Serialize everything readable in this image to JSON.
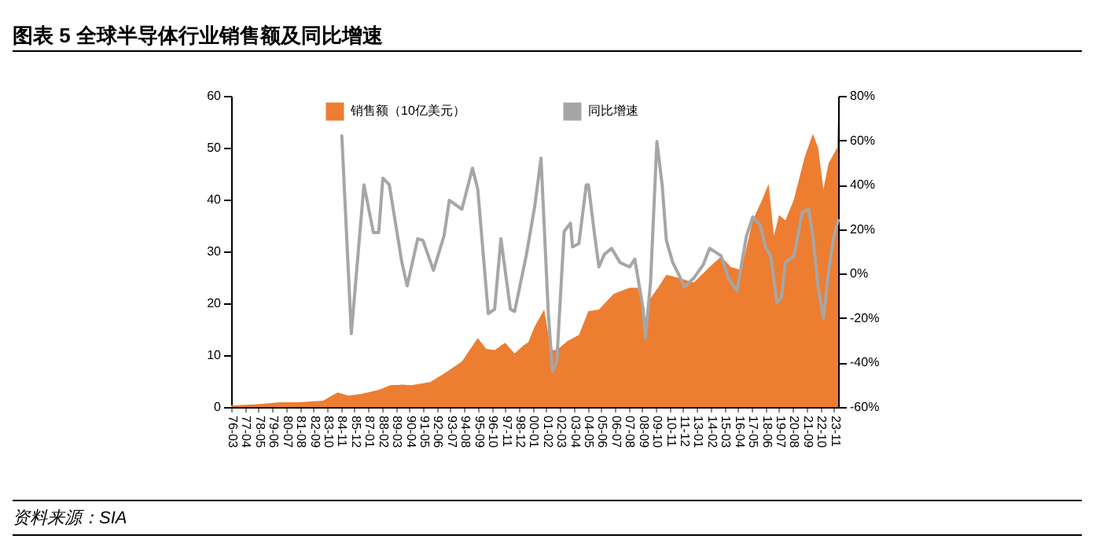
{
  "chart_data": {
    "type": "area",
    "title": "图表 5 全球半导体行业销售额及同比增速",
    "annotations": [
      "资料来源：SIA"
    ],
    "legend": "top",
    "xlim": [
      "1976-03",
      "2024-03"
    ],
    "xticks": [
      {
        "value": "1976-03",
        "label": "76-03"
      },
      {
        "value": "1977-04",
        "label": "77-04"
      },
      {
        "value": "1978-05",
        "label": "78-05"
      },
      {
        "value": "1979-06",
        "label": "79-06"
      },
      {
        "value": "1980-07",
        "label": "80-07"
      },
      {
        "value": "1981-08",
        "label": "81-08"
      },
      {
        "value": "1982-09",
        "label": "82-09"
      },
      {
        "value": "1983-10",
        "label": "83-10"
      },
      {
        "value": "1984-11",
        "label": "84-11"
      },
      {
        "value": "1985-12",
        "label": "85-12"
      },
      {
        "value": "1987-01",
        "label": "87-01"
      },
      {
        "value": "1988-02",
        "label": "88-02"
      },
      {
        "value": "1989-03",
        "label": "89-03"
      },
      {
        "value": "1990-04",
        "label": "90-04"
      },
      {
        "value": "1991-05",
        "label": "91-05"
      },
      {
        "value": "1992-06",
        "label": "92-06"
      },
      {
        "value": "1993-07",
        "label": "93-07"
      },
      {
        "value": "1994-08",
        "label": "94-08"
      },
      {
        "value": "1995-09",
        "label": "95-09"
      },
      {
        "value": "1996-10",
        "label": "96-10"
      },
      {
        "value": "1997-11",
        "label": "97-11"
      },
      {
        "value": "1998-12",
        "label": "98-12"
      },
      {
        "value": "2000-01",
        "label": "00-01"
      },
      {
        "value": "2001-02",
        "label": "01-02"
      },
      {
        "value": "2002-03",
        "label": "02-03"
      },
      {
        "value": "2003-04",
        "label": "03-04"
      },
      {
        "value": "2004-05",
        "label": "04-05"
      },
      {
        "value": "2005-06",
        "label": "05-06"
      },
      {
        "value": "2006-07",
        "label": "06-07"
      },
      {
        "value": "2007-08",
        "label": "07-08"
      },
      {
        "value": "2008-09",
        "label": "08-09"
      },
      {
        "value": "2009-10",
        "label": "09-10"
      },
      {
        "value": "2010-11",
        "label": "10-11"
      },
      {
        "value": "2011-12",
        "label": "11-12"
      },
      {
        "value": "2013-01",
        "label": "13-01"
      },
      {
        "value": "2014-02",
        "label": "14-02"
      },
      {
        "value": "2015-03",
        "label": "15-03"
      },
      {
        "value": "2016-04",
        "label": "16-04"
      },
      {
        "value": "2017-05",
        "label": "17-05"
      },
      {
        "value": "2018-06",
        "label": "18-06"
      },
      {
        "value": "2019-07",
        "label": "19-07"
      },
      {
        "value": "2020-08",
        "label": "20-08"
      },
      {
        "value": "2021-09",
        "label": "21-09"
      },
      {
        "value": "2022-10",
        "label": "22-10"
      },
      {
        "value": "2023-11",
        "label": "23-11"
      }
    ],
    "ylim": [
      0,
      60
    ],
    "yticks": [
      0,
      10,
      20,
      30,
      40,
      50,
      60
    ],
    "y2lim": [
      -60,
      80
    ],
    "y2ticks": [
      {
        "value": -60,
        "label": "-60%"
      },
      {
        "value": -40,
        "label": "-40%"
      },
      {
        "value": -20,
        "label": "-20%"
      },
      {
        "value": 0,
        "label": "0%"
      },
      {
        "value": 20,
        "label": "20%"
      },
      {
        "value": 40,
        "label": "40%"
      },
      {
        "value": 60,
        "label": "60%"
      },
      {
        "value": 80,
        "label": "80%"
      }
    ],
    "series": [
      {
        "name": "销售额（10亿美元）",
        "type": "area",
        "color": "#ed7d31",
        "x": [
          "1976-03",
          "1978-01",
          "1980-01",
          "1981-06",
          "1983-06",
          "1984-01",
          "1984-08",
          "1985-06",
          "1986-06",
          "1987-11",
          "1988-10",
          "1989-09",
          "1990-06",
          "1991-12",
          "1993-03",
          "1994-06",
          "1995-09",
          "1996-05",
          "1997-01",
          "1997-11",
          "1998-08",
          "1999-04",
          "1999-09",
          "2000-03",
          "2000-12",
          "2001-04",
          "2001-08",
          "2001-12",
          "2002-10",
          "2003-09",
          "2004-06",
          "2005-04",
          "2006-06",
          "2007-09",
          "2008-05",
          "2008-12",
          "2009-05",
          "2009-12",
          "2010-08",
          "2011-08",
          "2012-10",
          "2014-01",
          "2014-12",
          "2015-09",
          "2016-07",
          "2017-06",
          "2018-03",
          "2018-09",
          "2019-02",
          "2019-07",
          "2020-01",
          "2020-09",
          "2021-07",
          "2022-03",
          "2022-08",
          "2023-01",
          "2023-06",
          "2024-02",
          "2024-03"
        ],
        "values": [
          0.3,
          0.5,
          0.9,
          0.9,
          1.2,
          2.0,
          2.8,
          2.2,
          2.5,
          3.3,
          4.2,
          4.3,
          4.2,
          4.8,
          6.7,
          8.8,
          13.3,
          11.2,
          11.0,
          12.4,
          10.3,
          11.8,
          12.5,
          15.5,
          18.8,
          14,
          11,
          11,
          12.7,
          13.9,
          18.5,
          18.8,
          21.8,
          23,
          23,
          17,
          21,
          23,
          25.5,
          24.9,
          24,
          27,
          29,
          27,
          26.4,
          36,
          40,
          43,
          33,
          37,
          36,
          40,
          48,
          52.7,
          50,
          42,
          47,
          50,
          56
        ]
      },
      {
        "name": "同比增速",
        "type": "line",
        "axis": "y2",
        "color": "#a6a6a6",
        "x": [
          "1984-12",
          "1985-09",
          "1986-09",
          "1987-06",
          "1987-11",
          "1988-03",
          "1988-09",
          "1989-09",
          "1990-02",
          "1990-12",
          "1991-05",
          "1992-03",
          "1993-01",
          "1993-06",
          "1994-06",
          "1995-04",
          "1995-09",
          "1996-07",
          "1997-01",
          "1997-07",
          "1998-04",
          "1998-08",
          "1999-07",
          "2000-03",
          "2000-09",
          "2001-04",
          "2001-08",
          "2001-12",
          "2002-07",
          "2003-01",
          "2003-03",
          "2003-09",
          "2004-04",
          "2004-06",
          "2004-12",
          "2005-04",
          "2005-09",
          "2006-04",
          "2006-12",
          "2007-09",
          "2008-02",
          "2008-10",
          "2008-12",
          "2009-05",
          "2009-11",
          "2010-04",
          "2010-08",
          "2011-02",
          "2011-08",
          "2012-01",
          "2012-10",
          "2013-07",
          "2014-01",
          "2014-12",
          "2015-07",
          "2016-03",
          "2016-12",
          "2017-06",
          "2018-01",
          "2018-06",
          "2018-11",
          "2019-05",
          "2019-09",
          "2020-01",
          "2020-09",
          "2021-05",
          "2021-11",
          "2022-03",
          "2022-08",
          "2023-01",
          "2023-06",
          "2023-11",
          "2024-03"
        ],
        "values": [
          62,
          -27,
          40,
          18.5,
          18.5,
          43,
          40,
          5,
          -5.5,
          15.7,
          15,
          1.5,
          17,
          33,
          29,
          47.5,
          38,
          -18,
          -16,
          15.7,
          -16,
          -17,
          8,
          30,
          52,
          -18,
          -44,
          -39.5,
          19,
          22.7,
          12,
          13.5,
          40,
          40,
          17,
          3,
          8.6,
          11.4,
          5,
          3,
          6.5,
          -16,
          -29,
          -4,
          59.5,
          40,
          15,
          5,
          -0.6,
          -6,
          -2,
          4,
          11.4,
          8,
          -2,
          -7.7,
          17,
          25.5,
          22,
          12,
          8,
          -13,
          -11,
          5,
          8,
          27.7,
          29,
          17,
          -6,
          -20,
          1,
          17,
          24
        ]
      }
    ]
  }
}
